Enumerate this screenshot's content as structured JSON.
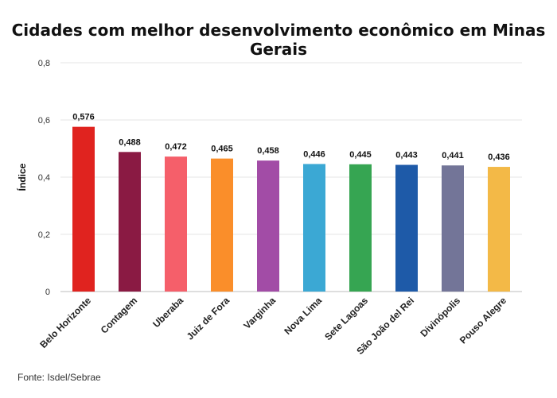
{
  "chart_data": {
    "type": "bar",
    "title": "Cidades com melhor desenvolvimento econômico em Minas Gerais",
    "ylabel": "Índice",
    "xlabel": "",
    "ylim": [
      0,
      0.8
    ],
    "yticks": [
      0,
      0.2,
      0.4,
      0.6,
      0.8
    ],
    "ytick_labels": [
      "0",
      "0,2",
      "0,4",
      "0,6",
      "0,8"
    ],
    "grid": true,
    "categories": [
      "Belo Horizonte",
      "Contagem",
      "Uberaba",
      "Juiz de Fora",
      "Varginha",
      "Nova Lima",
      "Sete Lagoas",
      "São João del Rei",
      "Divinópolis",
      "Pouso Alegre"
    ],
    "values": [
      0.576,
      0.488,
      0.472,
      0.465,
      0.458,
      0.446,
      0.445,
      0.443,
      0.441,
      0.436
    ],
    "value_labels": [
      "0,576",
      "0,488",
      "0,472",
      "0,465",
      "0,458",
      "0,446",
      "0,445",
      "0,443",
      "0,441",
      "0,436"
    ],
    "colors": [
      "#e0231f",
      "#8a1a43",
      "#f55f6a",
      "#fa8e2a",
      "#a24ca6",
      "#3ba8d4",
      "#36a552",
      "#1e5aa8",
      "#737598",
      "#f3b947"
    ]
  },
  "source": "Fonte: Isdel/Sebrae"
}
